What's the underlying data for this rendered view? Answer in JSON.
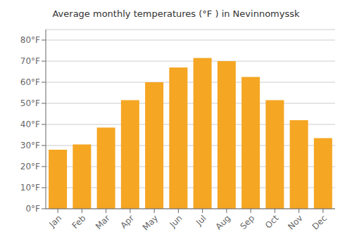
{
  "chart_data": {
    "type": "bar",
    "title": "Average monthly temperatures (°F ) in Nevinnomyssk",
    "categories": [
      "Jan",
      "Feb",
      "Mar",
      "Apr",
      "May",
      "Jun",
      "Jul",
      "Aug",
      "Sep",
      "Oct",
      "Nov",
      "Dec"
    ],
    "values": [
      28,
      30.5,
      38.5,
      51.5,
      60,
      67,
      71.5,
      70,
      62.5,
      51.5,
      42,
      33.5
    ],
    "color": "#F5A623",
    "ylim": [
      0,
      85
    ],
    "yticks": [
      {
        "value": 0,
        "label": "0°F"
      },
      {
        "value": 10,
        "label": "10°F"
      },
      {
        "value": 20,
        "label": "20°F"
      },
      {
        "value": 30,
        "label": "30°F"
      },
      {
        "value": 40,
        "label": "40°F"
      },
      {
        "value": 50,
        "label": "50°F"
      },
      {
        "value": 60,
        "label": "60°F"
      },
      {
        "value": 70,
        "label": "70°F"
      },
      {
        "value": 80,
        "label": "80°F"
      }
    ],
    "grid": true
  }
}
